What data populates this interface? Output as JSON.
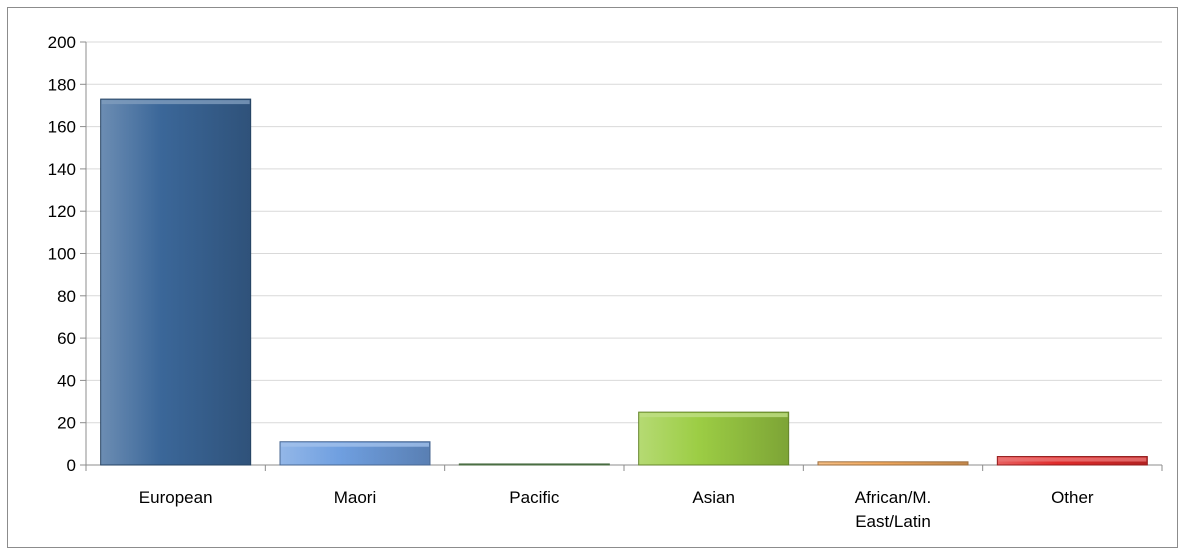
{
  "chart_data": {
    "type": "bar",
    "title": "",
    "xlabel": "",
    "ylabel": "",
    "categories": [
      [
        "European"
      ],
      [
        "Maori"
      ],
      [
        "Pacific"
      ],
      [
        "Asian"
      ],
      [
        "African/M.",
        "East/Latin"
      ],
      [
        "Other"
      ]
    ],
    "values": [
      173,
      11,
      0.5,
      25,
      1.5,
      4
    ],
    "colors": [
      "#3b6799",
      "#6f9fe0",
      "#6fa562",
      "#9ccd44",
      "#f2a95e",
      "#e02b2b"
    ],
    "ylim": [
      0,
      200
    ],
    "yticks": [
      0,
      20,
      40,
      60,
      80,
      100,
      120,
      140,
      160,
      180,
      200
    ],
    "grid": true,
    "legend": "none"
  }
}
